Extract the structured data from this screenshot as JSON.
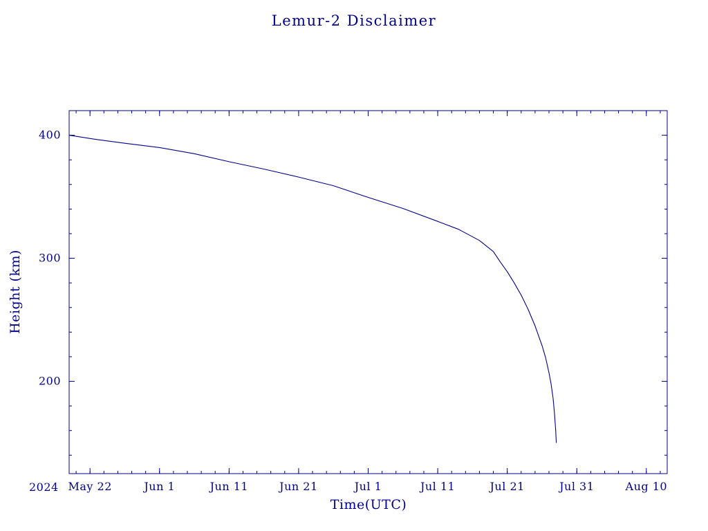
{
  "colors": {
    "ink": "#00008b",
    "background": "#ffffff"
  },
  "chart_data": {
    "type": "line",
    "title": "Lemur-2 Disclaimer",
    "xlabel": "Time(UTC)",
    "ylabel": "Height (km)",
    "year_label": "2024",
    "grid": false,
    "legend": "none",
    "x_axis": {
      "unit": "date (UTC), encoded as days since 2024 May 19",
      "lim_days": [
        0,
        86
      ],
      "major_ticks": [
        {
          "day": 3,
          "label": "May 22"
        },
        {
          "day": 13,
          "label": "Jun 1"
        },
        {
          "day": 23,
          "label": "Jun 11"
        },
        {
          "day": 33,
          "label": "Jun 21"
        },
        {
          "day": 43,
          "label": "Jul 1"
        },
        {
          "day": 53,
          "label": "Jul 11"
        },
        {
          "day": 63,
          "label": "Jul 21"
        },
        {
          "day": 73,
          "label": "Jul 31"
        },
        {
          "day": 83,
          "label": "Aug 10"
        }
      ],
      "minor_tick_step_days": 2
    },
    "y_axis": {
      "unit": "km",
      "lim": [
        125,
        420
      ],
      "major_ticks": [
        {
          "value": 200,
          "label": "200"
        },
        {
          "value": 300,
          "label": "300"
        },
        {
          "value": 400,
          "label": "400"
        }
      ],
      "minor_tick_step": 20
    },
    "series": [
      {
        "name": "Lemur-2 Disclaimer predicted height",
        "color": "#00008b",
        "points_day_km": [
          [
            0,
            400
          ],
          [
            4,
            396.5
          ],
          [
            8,
            393.5
          ],
          [
            13,
            390
          ],
          [
            18,
            385
          ],
          [
            23,
            378.5
          ],
          [
            28,
            372.5
          ],
          [
            33,
            366
          ],
          [
            38,
            359
          ],
          [
            43,
            349.5
          ],
          [
            48,
            340.5
          ],
          [
            53,
            330
          ],
          [
            56,
            323.5
          ],
          [
            59,
            314.5
          ],
          [
            61,
            305.5
          ],
          [
            62,
            297
          ],
          [
            63,
            289
          ],
          [
            64,
            280
          ],
          [
            65,
            270
          ],
          [
            66,
            258.5
          ],
          [
            67,
            245
          ],
          [
            68,
            229
          ],
          [
            68.5,
            219.5
          ],
          [
            69,
            207
          ],
          [
            69.3,
            198
          ],
          [
            69.6,
            186
          ],
          [
            69.8,
            173
          ],
          [
            69.95,
            161
          ],
          [
            70.05,
            150
          ]
        ]
      }
    ]
  }
}
